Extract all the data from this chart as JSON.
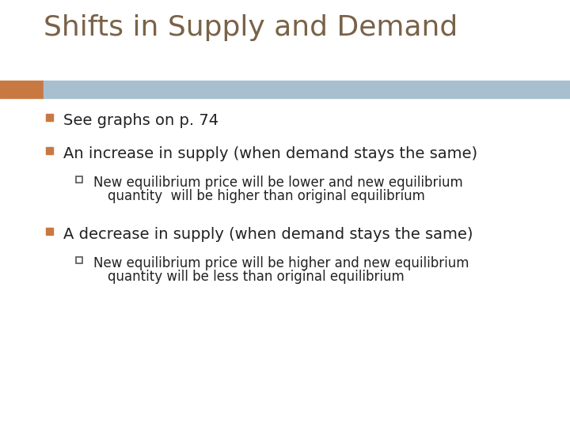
{
  "title": "Shifts in Supply and Demand",
  "title_color": "#7a6248",
  "title_fontsize": 26,
  "background_color": "#ffffff",
  "header_bar_color": "#a8bfd0",
  "header_bar_accent_color": "#c87941",
  "bullet1": "See graphs on p. 74",
  "bullet2": "An increase in supply (when demand stays the same)",
  "sub_bullet2_line1": "New equilibrium price will be lower and new equilibrium",
  "sub_bullet2_line2": "quantity  will be higher than original equilibrium",
  "bullet3": "A decrease in supply (when demand stays the same)",
  "sub_bullet3_line1": "New equilibrium price will be higher and new equilibrium",
  "sub_bullet3_line2": "quantity will be less than original equilibrium",
  "bullet_color": "#222222",
  "bullet_marker_color": "#c87941",
  "sub_bullet_marker_color": "#555555",
  "main_fontsize": 14,
  "sub_fontsize": 12,
  "title_font": "DejaVu Sans",
  "body_font": "DejaVu Sans"
}
